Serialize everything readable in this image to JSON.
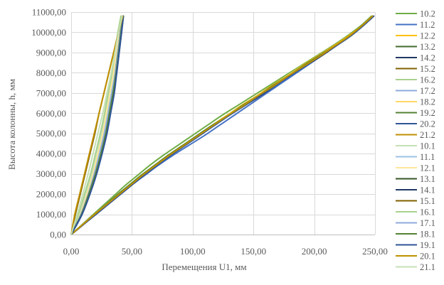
{
  "chart_data": {
    "type": "line",
    "title": "",
    "xlabel": "Перемещения U1, мм",
    "ylabel": "Высота колонны, h, мм",
    "xlim": [
      0,
      250
    ],
    "ylim": [
      0,
      11000
    ],
    "x_ticks": [
      "0,00",
      "50,00",
      "100,00",
      "150,00",
      "200,00",
      "250,00"
    ],
    "y_ticks": [
      "0,00",
      "1000,00",
      "2000,00",
      "3000,00",
      "4000,00",
      "5000,00",
      "6000,00",
      "7000,00",
      "8000,00",
      "9000,00",
      "10000,00",
      "11000,00"
    ],
    "grid": true,
    "legend_position": "right",
    "y_levels": [
      0,
      1000,
      2000,
      3000,
      4000,
      5000,
      6000,
      7000,
      8000,
      9000,
      10000,
      10800
    ],
    "series": [
      {
        "name": "10.2",
        "color": "#70AD47",
        "x": [
          0,
          9,
          18,
          27,
          36,
          45,
          55,
          65,
          76,
          88,
          100,
          112,
          124,
          137,
          150,
          163,
          176,
          189,
          202,
          215,
          227,
          238,
          247
        ]
      },
      {
        "name": "11.2",
        "color": "#4472C4",
        "x": [
          0,
          10,
          20,
          30,
          40,
          50,
          61,
          72,
          84,
          97,
          110,
          122,
          134,
          146,
          158,
          170,
          182,
          194,
          206,
          218,
          229,
          239,
          248
        ]
      },
      {
        "name": "12.2",
        "color": "#FFC000",
        "x": [
          0,
          9.5,
          19,
          28.5,
          38,
          48,
          58,
          69,
          80,
          92,
          104,
          116,
          128,
          140,
          153,
          165,
          178,
          190,
          203,
          216,
          228,
          239,
          248
        ]
      },
      {
        "name": "13.2",
        "color": "#43682B",
        "x": [
          0,
          10,
          19.5,
          29,
          39,
          49,
          59,
          70,
          81,
          93,
          105,
          117,
          129,
          141,
          154,
          166,
          179,
          191,
          204,
          217,
          229,
          239,
          248
        ]
      },
      {
        "name": "14.2",
        "color": "#203864",
        "x": [
          0,
          10,
          20,
          30,
          40,
          50,
          60,
          71,
          82,
          94,
          106,
          118,
          130,
          143,
          156,
          168,
          180,
          193,
          206,
          218,
          230,
          240,
          249
        ]
      },
      {
        "name": "15.2",
        "color": "#7F6000",
        "x": [
          0,
          10,
          19.5,
          29,
          39,
          49,
          59,
          70,
          81,
          93,
          105,
          117,
          129,
          142,
          155,
          167,
          180,
          192,
          205,
          217,
          229,
          239,
          248
        ]
      },
      {
        "name": "16.2",
        "color": "#A9D18E",
        "x": [
          0,
          9.5,
          19,
          28.5,
          38,
          48,
          58,
          69,
          80,
          92,
          104,
          116,
          128,
          141,
          154,
          166,
          179,
          192,
          204,
          217,
          229,
          239,
          248
        ]
      },
      {
        "name": "17.2",
        "color": "#8FAADC",
        "x": [
          0,
          10,
          19.5,
          29,
          39,
          49,
          59,
          70,
          81,
          93,
          105,
          117,
          130,
          142,
          155,
          167,
          180,
          192,
          205,
          217,
          229,
          240,
          248
        ]
      },
      {
        "name": "18.2",
        "color": "#FFD966",
        "x": [
          0,
          9.5,
          19,
          28.5,
          38,
          48,
          58,
          69,
          80,
          92,
          104,
          116,
          128,
          141,
          153,
          166,
          178,
          191,
          204,
          217,
          229,
          239,
          248
        ]
      },
      {
        "name": "19.2",
        "color": "#548235",
        "x": [
          0,
          9.5,
          19,
          28.5,
          38,
          48,
          58,
          69,
          80,
          92,
          104,
          116,
          129,
          141,
          154,
          166,
          179,
          191,
          204,
          217,
          229,
          239,
          248
        ]
      },
      {
        "name": "20.2",
        "color": "#2F5597",
        "x": [
          0,
          10,
          20,
          30,
          40,
          50,
          60,
          71,
          82,
          94,
          106,
          118,
          130,
          143,
          155,
          168,
          180,
          193,
          205,
          218,
          230,
          240,
          249
        ]
      },
      {
        "name": "21.2",
        "color": "#BF9000",
        "x": [
          0,
          9.5,
          19,
          29,
          39,
          49,
          59,
          70,
          81,
          93,
          105,
          117,
          129,
          142,
          154,
          167,
          179,
          192,
          205,
          217,
          229,
          239,
          248
        ]
      },
      {
        "name": "10.1",
        "color": "#C5E0B4",
        "x": [
          0,
          7,
          12,
          17,
          21,
          25,
          28,
          31,
          34,
          36,
          38.5,
          41
        ]
      },
      {
        "name": "11.1",
        "color": "#9DC3E6",
        "x": [
          0,
          8,
          14,
          19,
          23,
          27,
          30,
          33,
          35.5,
          38,
          40,
          42
        ]
      },
      {
        "name": "12.1",
        "color": "#FFE699",
        "x": [
          0,
          7.5,
          13,
          18,
          22,
          26,
          29,
          32,
          35,
          37,
          39.5,
          41.5
        ]
      },
      {
        "name": "13.1",
        "color": "#375623",
        "x": [
          0,
          8.5,
          14.5,
          19.5,
          24,
          28,
          31,
          34,
          36.5,
          38.5,
          40.5,
          42.5
        ]
      },
      {
        "name": "14.1",
        "color": "#1F3864",
        "x": [
          0,
          9,
          15,
          20.5,
          25,
          29,
          32,
          35,
          37.5,
          39.5,
          41.5,
          43
        ]
      },
      {
        "name": "15.1",
        "color": "#806000",
        "x": [
          0,
          3.5,
          7.5,
          11.5,
          15.5,
          19.5,
          23,
          27,
          31,
          35,
          39,
          43
        ]
      },
      {
        "name": "16.1",
        "color": "#A9D18E",
        "x": [
          0,
          6,
          11,
          16,
          20,
          24,
          27.5,
          30.5,
          33.5,
          36,
          38.5,
          41
        ]
      },
      {
        "name": "17.1",
        "color": "#8FAADC",
        "x": [
          0,
          8,
          14,
          19,
          23.5,
          27.5,
          31,
          34,
          36.5,
          38.5,
          40.5,
          42.5
        ]
      },
      {
        "name": "18.1",
        "color": "#548235",
        "x": [
          0,
          8.5,
          14.5,
          20,
          24.5,
          28.5,
          31.5,
          34.5,
          37,
          39,
          41,
          43
        ]
      },
      {
        "name": "19.1",
        "color": "#2F5597",
        "x": [
          0,
          9,
          15.5,
          21,
          25.5,
          29.5,
          32.5,
          35.5,
          37.5,
          39.5,
          41.5,
          43
        ]
      },
      {
        "name": "20.1",
        "color": "#BF9000",
        "x": [
          0,
          3,
          7,
          11,
          15,
          19,
          23,
          27,
          31,
          35,
          39,
          42.5
        ]
      },
      {
        "name": "21.1",
        "color": "#C5E0B4",
        "x": [
          0,
          5,
          9.5,
          14,
          18,
          22,
          26,
          29.5,
          33,
          36,
          39,
          42
        ]
      }
    ]
  }
}
